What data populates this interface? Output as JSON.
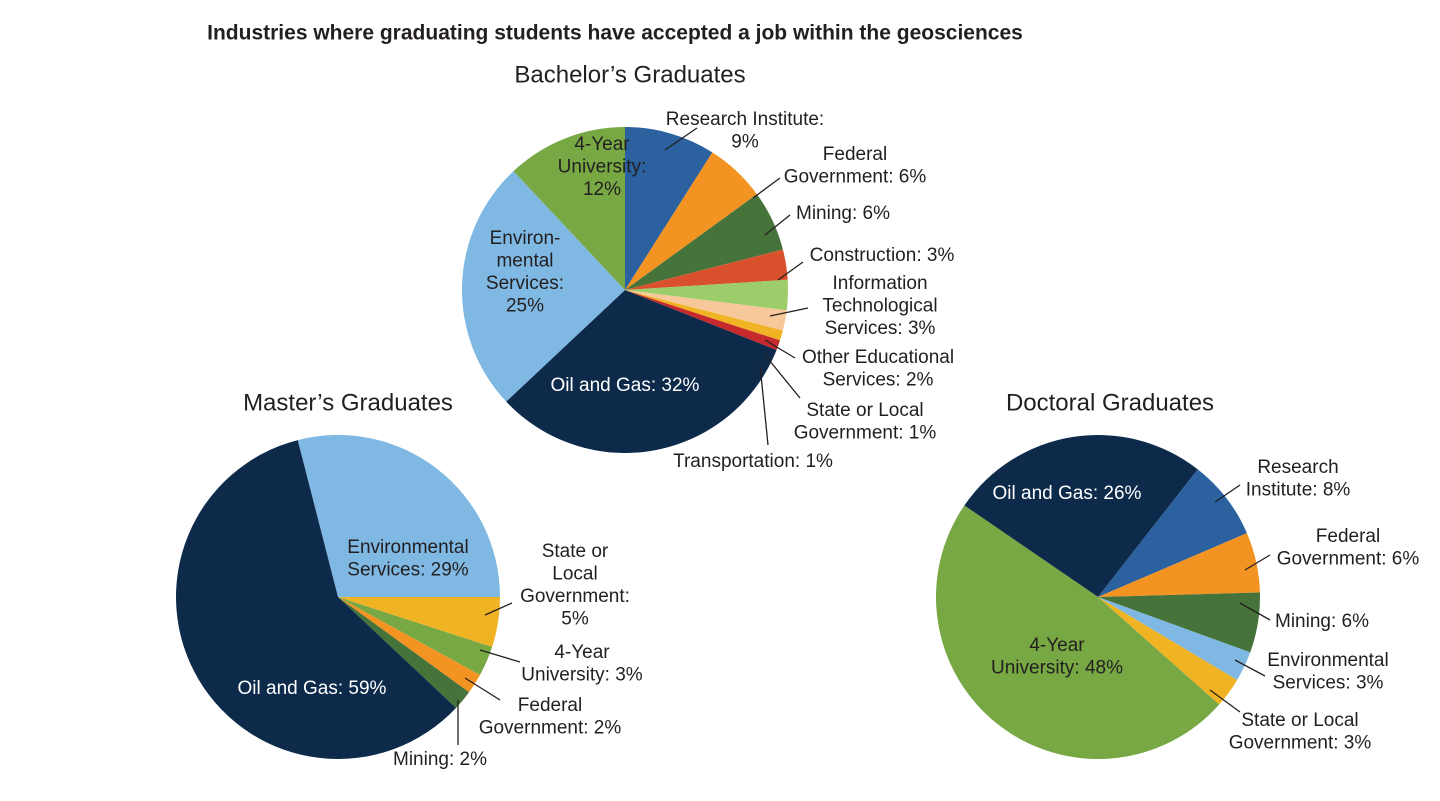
{
  "title": "Industries where graduating students have accepted a job within the geosciences",
  "chart_data": [
    {
      "type": "pie",
      "title": "Bachelor’s Graduates",
      "values": [
        9,
        6,
        6,
        3,
        3,
        2,
        1,
        1,
        32,
        25,
        12
      ],
      "value_labels": [
        [
          "Research Institute:",
          "9%"
        ],
        [
          "Federal",
          "Government: 6%"
        ],
        [
          "Mining: 6%"
        ],
        [
          "Construction: 3%"
        ],
        [
          "Information",
          "Technological",
          "Services: 3%"
        ],
        [
          "Other Educational",
          "Services: 2%"
        ],
        [
          "State or Local",
          "Government: 1%"
        ],
        [
          "Transportation: 1%"
        ],
        [
          "Oil and Gas: 32%"
        ],
        [
          "Environ-",
          "mental",
          "Services:",
          "25%"
        ],
        [
          "4-Year",
          "University:",
          "12%"
        ]
      ],
      "colors": [
        "#2b619e",
        "#f39322",
        "#46733a",
        "#d9512c",
        "#9dcc6b",
        "#f7c99a",
        "#f0b323",
        "#c62a2d",
        "#0d2a4a",
        "#7fb8e3",
        "#78a843"
      ]
    },
    {
      "type": "pie",
      "title": "Master’s Graduates",
      "values": [
        29,
        5,
        3,
        2,
        2,
        59
      ],
      "value_labels": [
        [
          "Environmental",
          "Services: 29%"
        ],
        [
          "State or",
          "Local",
          "Government:",
          "5%"
        ],
        [
          "4-Year",
          "University: 3%"
        ],
        [
          "Federal",
          "Government: 2%"
        ],
        [
          "Mining: 2%"
        ],
        [
          "Oil and Gas: 59%"
        ]
      ],
      "colors": [
        "#7fb8e3",
        "#f0b323",
        "#78a843",
        "#f39322",
        "#46733a",
        "#0d2a4a"
      ]
    },
    {
      "type": "pie",
      "title": "Doctoral Graduates",
      "values": [
        26,
        8,
        6,
        6,
        3,
        3,
        48
      ],
      "value_labels": [
        [
          "Oil and Gas: 26%"
        ],
        [
          "Research",
          "Institute: 8%"
        ],
        [
          "Federal",
          "Government: 6%"
        ],
        [
          "Mining: 6%"
        ],
        [
          "Environmental",
          "Services: 3%"
        ],
        [
          "State or Local",
          "Government: 3%"
        ],
        [
          "4-Year",
          "University: 48%"
        ]
      ],
      "colors": [
        "#0d2a4a",
        "#2b619e",
        "#f39322",
        "#46733a",
        "#7fb8e3",
        "#f0b323",
        "#78a843"
      ]
    }
  ]
}
